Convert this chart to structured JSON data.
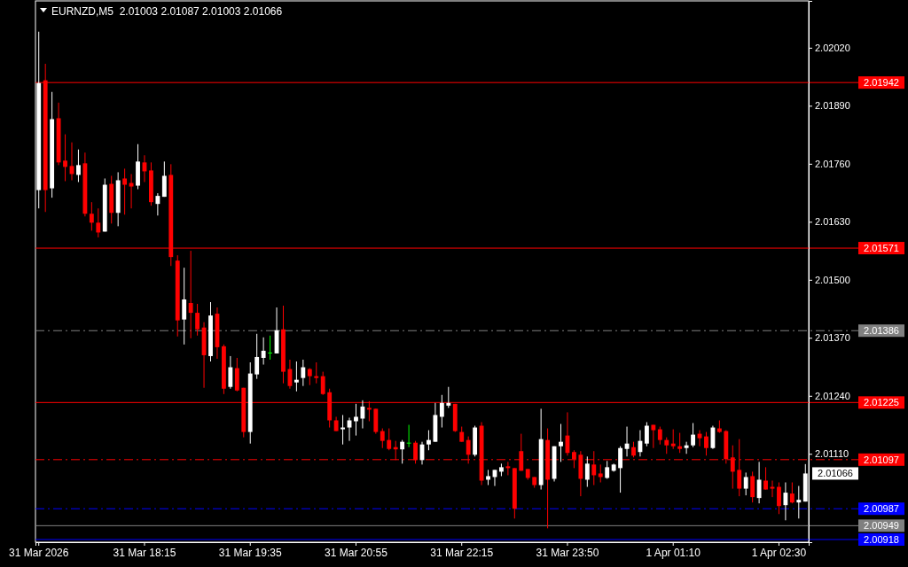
{
  "chart_data": {
    "type": "candlestick",
    "title": "EURNZD,M5  2.01003 2.01087 2.01003 2.01066",
    "categories": [
      "31 Mar 2026",
      null,
      null,
      null,
      null,
      null,
      null,
      null,
      null,
      null,
      null,
      null,
      null,
      null,
      null,
      null,
      "31 Mar 18:15",
      null,
      null,
      null,
      null,
      null,
      null,
      null,
      null,
      null,
      null,
      null,
      null,
      null,
      null,
      null,
      "31 Mar 19:35",
      null,
      null,
      null,
      null,
      null,
      null,
      null,
      null,
      null,
      null,
      null,
      null,
      null,
      null,
      null,
      "31 Mar 20:55",
      null,
      null,
      null,
      null,
      null,
      null,
      null,
      null,
      null,
      null,
      null,
      null,
      null,
      null,
      null,
      "31 Mar 22:15",
      null,
      null,
      null,
      null,
      null,
      null,
      null,
      null,
      null,
      null,
      null,
      null,
      null,
      null,
      null,
      "31 Mar 23:50",
      null,
      null,
      null,
      null,
      null,
      null,
      null,
      null,
      null,
      null,
      null,
      null,
      null,
      null,
      null,
      "1 Apr 01:10",
      null,
      null,
      null,
      null,
      null,
      null,
      null,
      null,
      null,
      null,
      null,
      null,
      null,
      null,
      null,
      "1 Apr 02:30",
      null,
      null,
      null,
      null
    ],
    "ohlc": [
      [
        2.01701,
        2.02056,
        2.0166,
        2.01941
      ],
      [
        2.01947,
        2.01984,
        2.01652,
        2.01701
      ],
      [
        2.01705,
        2.01921,
        2.01684,
        2.0186
      ],
      [
        2.01862,
        2.01897,
        2.01757,
        2.01763
      ],
      [
        2.01767,
        2.01826,
        2.01721,
        2.01753
      ],
      [
        2.01755,
        2.01808,
        2.01723,
        2.01737
      ],
      [
        2.01735,
        2.01792,
        2.01719,
        2.01757
      ],
      [
        2.01761,
        2.01785,
        2.01642,
        2.01648
      ],
      [
        2.01648,
        2.01674,
        2.0161,
        2.01628
      ],
      [
        2.01628,
        2.0166,
        2.01595,
        2.01606
      ],
      [
        2.01608,
        2.01727,
        2.01608,
        2.01713
      ],
      [
        2.01715,
        2.01733,
        2.01626,
        2.0165
      ],
      [
        2.0165,
        2.01741,
        2.0162,
        2.01723
      ],
      [
        2.01727,
        2.01749,
        2.01646,
        2.01713
      ],
      [
        2.01717,
        2.01737,
        2.0166,
        2.01709
      ],
      [
        2.01711,
        2.01804,
        2.01703,
        2.01765
      ],
      [
        2.01763,
        2.01779,
        2.01719,
        2.01743
      ],
      [
        2.01745,
        2.01763,
        2.01666,
        2.01674
      ],
      [
        2.0167,
        2.01694,
        2.01644,
        2.01688
      ],
      [
        2.01686,
        2.01765,
        2.01686,
        2.01733
      ],
      [
        2.01735,
        2.01759,
        2.01531,
        2.01551
      ],
      [
        2.01543,
        2.01555,
        2.01373,
        2.01409
      ],
      [
        2.01411,
        2.01527,
        2.01355,
        2.01456
      ],
      [
        2.01448,
        2.01565,
        2.01369,
        2.01426
      ],
      [
        2.01426,
        2.01446,
        2.01375,
        2.01389
      ],
      [
        2.01393,
        2.01405,
        2.01258,
        2.01331
      ],
      [
        2.01329,
        2.0145,
        2.01317,
        2.0142
      ],
      [
        2.01424,
        2.01438,
        2.01323,
        2.01349
      ],
      [
        2.01351,
        2.01355,
        2.01244,
        2.01256
      ],
      [
        2.0126,
        2.01329,
        2.01256,
        2.01304
      ],
      [
        2.01302,
        2.01325,
        2.0125,
        2.01252
      ],
      [
        2.01258,
        2.01258,
        2.01147,
        2.01159
      ],
      [
        2.01159,
        2.01315,
        2.01133,
        2.0129
      ],
      [
        2.01288,
        2.01379,
        2.01278,
        2.01327
      ],
      [
        2.01325,
        2.01371,
        2.0131,
        2.01341
      ],
      [
        2.01337,
        2.01375,
        2.01321,
        2.01337
      ],
      [
        2.01335,
        2.01438,
        2.01335,
        2.01387
      ],
      [
        2.01389,
        2.01442,
        2.01268,
        2.01294
      ],
      [
        2.013,
        2.01321,
        2.01256,
        2.01262
      ],
      [
        2.0127,
        2.01317,
        2.0125,
        2.01276
      ],
      [
        2.0128,
        2.01321,
        2.01262,
        2.01304
      ],
      [
        2.013,
        2.01302,
        2.01264,
        2.01284
      ],
      [
        2.01284,
        2.01315,
        2.01268,
        2.0128
      ],
      [
        2.01284,
        2.01294,
        2.01242,
        2.01244
      ],
      [
        2.01248,
        2.01256,
        2.01169,
        2.01185
      ],
      [
        2.01185,
        2.01193,
        2.01161,
        2.01161
      ],
      [
        2.01165,
        2.01197,
        2.01131,
        2.01169
      ],
      [
        2.01169,
        2.01191,
        2.01139,
        2.01185
      ],
      [
        2.01183,
        2.01222,
        2.01151,
        2.01193
      ],
      [
        2.01189,
        2.0123,
        2.01167,
        2.01216
      ],
      [
        2.01213,
        2.01228,
        2.01183,
        2.01209
      ],
      [
        2.01211,
        2.01211,
        2.01155,
        2.01159
      ],
      [
        2.01161,
        2.01167,
        2.01123,
        2.01139
      ],
      [
        2.01141,
        2.01167,
        2.01118,
        2.01121
      ],
      [
        2.01125,
        2.01139,
        2.01096,
        2.0112
      ],
      [
        2.0112,
        2.01141,
        2.01088,
        2.01137
      ],
      [
        2.01135,
        2.01175,
        2.01125,
        2.01135
      ],
      [
        2.01135,
        2.01139,
        2.01088,
        2.01096
      ],
      [
        2.01096,
        2.01137,
        2.01086,
        2.01131
      ],
      [
        2.01131,
        2.01163,
        2.01118,
        2.01141
      ],
      [
        2.01137,
        2.01224,
        2.01137,
        2.01197
      ],
      [
        2.01193,
        2.01242,
        2.01169,
        2.01224
      ],
      [
        2.01218,
        2.0126,
        2.01213,
        2.01224
      ],
      [
        2.01222,
        2.01222,
        2.01159,
        2.01161
      ],
      [
        2.01159,
        2.01171,
        2.01137,
        2.01137
      ],
      [
        2.01141,
        2.01149,
        2.01088,
        2.01108
      ],
      [
        2.01108,
        2.01173,
        2.01104,
        2.01169
      ],
      [
        2.01173,
        2.01181,
        2.0104,
        2.0105
      ],
      [
        2.01052,
        2.01074,
        2.0104,
        2.0106
      ],
      [
        2.01058,
        2.01074,
        2.01038,
        2.01074
      ],
      [
        2.0107,
        2.01088,
        2.0106,
        2.0108
      ],
      [
        2.01082,
        2.01092,
        2.01062,
        2.01078
      ],
      [
        2.01078,
        2.01078,
        2.00965,
        2.00987
      ],
      [
        2.01116,
        2.01155,
        2.01072,
        2.01072
      ],
      [
        2.01076,
        2.01076,
        2.01052,
        2.01056
      ],
      [
        2.01058,
        2.01058,
        2.01034,
        2.0104
      ],
      [
        2.0104,
        2.01211,
        2.0103,
        2.01143
      ],
      [
        2.01141,
        2.01167,
        2.00943,
        2.01052
      ],
      [
        2.01054,
        2.01127,
        2.01048,
        2.01127
      ],
      [
        2.01127,
        2.01177,
        2.01092,
        2.01137
      ],
      [
        2.01151,
        2.01203,
        2.01106,
        2.01112
      ],
      [
        2.01114,
        2.01118,
        2.01078,
        2.01098
      ],
      [
        2.01108,
        2.01116,
        2.01015,
        2.01054
      ],
      [
        2.01052,
        2.01104,
        2.01036,
        2.01088
      ],
      [
        2.01086,
        2.01116,
        2.0104,
        2.01062
      ],
      [
        2.01066,
        2.01086,
        2.01046,
        2.01058
      ],
      [
        2.01056,
        2.01094,
        2.01054,
        2.0108
      ],
      [
        2.01072,
        2.01088,
        2.0107,
        2.01086
      ],
      [
        2.01078,
        2.01127,
        2.01023,
        2.01123
      ],
      [
        2.01121,
        2.01171,
        2.01104,
        2.01133
      ],
      [
        2.01125,
        2.01137,
        2.01102,
        2.01106
      ],
      [
        2.01114,
        2.01163,
        2.01104,
        2.01139
      ],
      [
        2.01133,
        2.01181,
        2.01127,
        2.01173
      ],
      [
        2.01175,
        2.01175,
        2.01123,
        2.01163
      ],
      [
        2.01165,
        2.01171,
        2.01131,
        2.01141
      ],
      [
        2.01141,
        2.01147,
        2.0111,
        2.01129
      ],
      [
        2.01133,
        2.01165,
        2.01121,
        2.01127
      ],
      [
        2.01127,
        2.01157,
        2.01112,
        2.01121
      ],
      [
        2.01123,
        2.01137,
        2.0111,
        2.01129
      ],
      [
        2.01129,
        2.01179,
        2.01125,
        2.01153
      ],
      [
        2.01155,
        2.01163,
        2.01127,
        2.01145
      ],
      [
        2.01149,
        2.01159,
        2.01106,
        2.01123
      ],
      [
        2.01123,
        2.01173,
        2.01121,
        2.01169
      ],
      [
        2.01167,
        2.01185,
        2.01157,
        2.01159
      ],
      [
        2.01161,
        2.01163,
        2.01088,
        2.01098
      ],
      [
        2.01102,
        2.01129,
        2.01032,
        2.0107
      ],
      [
        2.01074,
        2.01143,
        2.01015,
        2.01032
      ],
      [
        2.01032,
        2.01068,
        2.01017,
        2.01058
      ],
      [
        2.0106,
        2.0107,
        2.01001,
        2.01013
      ],
      [
        2.01011,
        2.01092,
        2.00999,
        2.01052
      ],
      [
        2.0105,
        2.0108,
        2.0103,
        2.0103
      ],
      [
        2.01036,
        2.0105,
        2.01013,
        2.01032
      ],
      [
        2.01036,
        2.01046,
        2.00975,
        2.00993
      ],
      [
        2.00995,
        2.01046,
        2.00961,
        2.01023
      ],
      [
        2.01021,
        2.01046,
        2.00999,
        2.01001
      ],
      [
        2.01001,
        2.01038,
        2.00965,
        2.01007
      ],
      [
        2.01003,
        2.01087,
        2.01003,
        2.01066
      ]
    ],
    "colors": [
      "#ffffff",
      "#ff0000",
      "#ffffff",
      "#ff0000",
      "#ff0000",
      "#ff0000",
      "#ffffff",
      "#ff0000",
      "#ff0000",
      "#ff0000",
      "#ffffff",
      "#ff0000",
      "#ffffff",
      "#ff0000",
      "#ff0000",
      "#ffffff",
      "#ff0000",
      "#ff0000",
      "#ffffff",
      "#ffffff",
      "#ff0000",
      "#ff0000",
      "#ffffff",
      "#ff0000",
      "#ff0000",
      "#ff0000",
      "#ffffff",
      "#ff0000",
      "#ff0000",
      "#ffffff",
      "#ff0000",
      "#ff0000",
      "#ffffff",
      "#ffffff",
      "#ffffff",
      "#00ff00",
      "#ffffff",
      "#ff0000",
      "#ff0000",
      "#ffffff",
      "#ffffff",
      "#ff0000",
      "#ff0000",
      "#ff0000",
      "#ff0000",
      "#ff0000",
      "#ffffff",
      "#ffffff",
      "#ffffff",
      "#ffffff",
      "#ff0000",
      "#ff0000",
      "#ff0000",
      "#ff0000",
      "#ff0000",
      "#ffffff",
      "#00ff00",
      "#ff0000",
      "#ffffff",
      "#ffffff",
      "#ffffff",
      "#ffffff",
      "#ffffff",
      "#ff0000",
      "#ff0000",
      "#ff0000",
      "#ffffff",
      "#ff0000",
      "#ffffff",
      "#ffffff",
      "#ffffff",
      "#ff0000",
      "#ff0000",
      "#ff0000",
      "#ff0000",
      "#ff0000",
      "#ffffff",
      "#ff0000",
      "#ffffff",
      "#ffffff",
      "#ff0000",
      "#ff0000",
      "#ff0000",
      "#ffffff",
      "#ff0000",
      "#ff0000",
      "#ffffff",
      "#ffffff",
      "#ffffff",
      "#ffffff",
      "#ff0000",
      "#ffffff",
      "#ffffff",
      "#ff0000",
      "#ff0000",
      "#ff0000",
      "#ff0000",
      "#ff0000",
      "#ffffff",
      "#ffffff",
      "#ff0000",
      "#ff0000",
      "#ffffff",
      "#ff0000",
      "#ff0000",
      "#ff0000",
      "#ff0000",
      "#ffffff",
      "#ff0000",
      "#ffffff",
      "#ff0000",
      "#ff0000",
      "#ff0000",
      "#ffffff",
      "#ff0000",
      "#ffffff",
      "#ffffff"
    ],
    "ylim": [
      2.00912,
      2.02125
    ],
    "yticks": [
      {
        "value": 2.0202,
        "label": "2.02020"
      },
      {
        "value": 2.0189,
        "label": "2.01890"
      },
      {
        "value": 2.0176,
        "label": "2.01760"
      },
      {
        "value": 2.0163,
        "label": "2.01630"
      },
      {
        "value": 2.015,
        "label": "2.01500"
      },
      {
        "value": 2.0137,
        "label": "2.01370"
      },
      {
        "value": 2.0124,
        "label": "2.01240"
      },
      {
        "value": 2.0111,
        "label": "2.01110"
      }
    ],
    "ref_lines": [
      {
        "axis": "y",
        "value": 2.01942,
        "label": "2.01942",
        "color": "#ff0000",
        "line_style": "solid"
      },
      {
        "axis": "y",
        "value": 2.01571,
        "label": "2.01571",
        "color": "#ff0000",
        "line_style": "solid"
      },
      {
        "axis": "y",
        "value": 2.01386,
        "label": "2.01386",
        "color": "#808080",
        "line_style": "dashed"
      },
      {
        "axis": "y",
        "value": 2.01225,
        "label": "2.01225",
        "color": "#ff0000",
        "line_style": "solid"
      },
      {
        "axis": "y",
        "value": 2.01097,
        "label": "2.01097",
        "color": "#ff0000",
        "line_style": "dashed"
      },
      {
        "axis": "y",
        "value": 2.00987,
        "label": "2.00987",
        "color": "#0000ff",
        "line_style": "dashed"
      },
      {
        "axis": "y",
        "value": 2.00949,
        "label": "2.00949",
        "color": "#808080",
        "line_style": "solid"
      },
      {
        "axis": "y",
        "value": 2.00918,
        "label": "2.00918",
        "color": "#0000ff",
        "line_style": "solid"
      }
    ],
    "annotations": [
      "2.01066"
    ]
  }
}
